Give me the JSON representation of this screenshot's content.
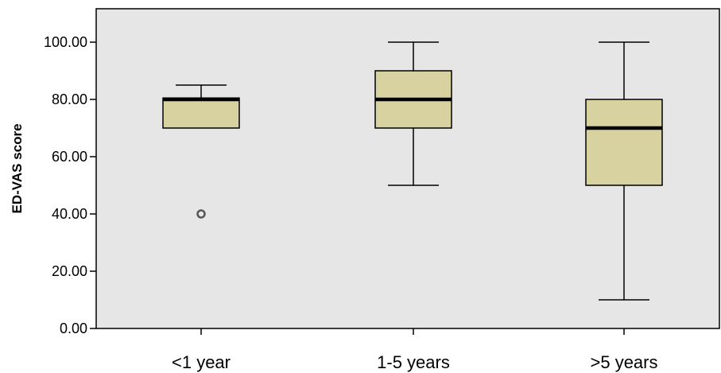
{
  "chart_data": {
    "type": "boxplot",
    "title": "",
    "xlabel": "",
    "ylabel": "ED-VAS score",
    "ylim": [
      0,
      110
    ],
    "yticks": [
      0,
      20,
      40,
      60,
      80,
      100
    ],
    "ytick_labels": [
      "0.00",
      "20.00",
      "40.00",
      "60.00",
      "80.00",
      "100.00"
    ],
    "categories": [
      "<1 year",
      "1-5 years",
      ">5 years"
    ],
    "boxes": [
      {
        "whisker_low": 70,
        "q1": 70,
        "median": 80,
        "q3": 80.5,
        "whisker_high": 85,
        "outliers": [
          40
        ]
      },
      {
        "whisker_low": 50,
        "q1": 70,
        "median": 80,
        "q3": 90,
        "whisker_high": 100,
        "outliers": []
      },
      {
        "whisker_low": 10,
        "q1": 50,
        "median": 70,
        "q3": 80,
        "whisker_high": 100,
        "outliers": []
      }
    ],
    "grid": false,
    "colors": {
      "plot_background": "#e6e6e6",
      "box_fill": "#d8d2a0",
      "stroke": "#000000",
      "outlier_stroke": "#555555"
    }
  }
}
